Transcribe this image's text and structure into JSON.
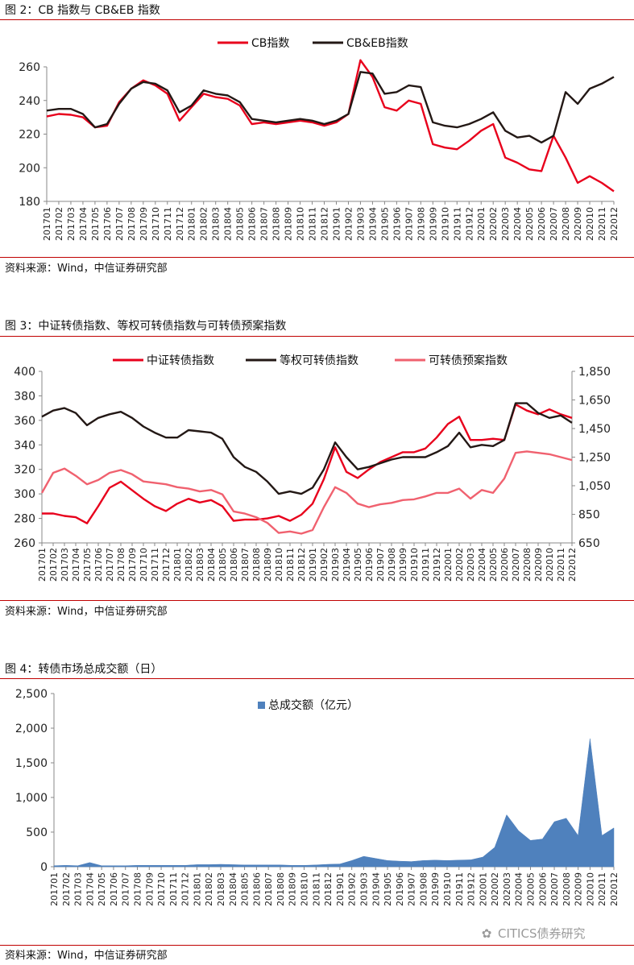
{
  "figures": [
    {
      "title": "图 2：CB 指数与 CB&EB 指数",
      "source": "资料来源：Wind，中信证券研究部"
    },
    {
      "title": "图 3：中证转债指数、等权可转债指数与可转债预案指数",
      "source": "资料来源：Wind，中信证券研究部"
    },
    {
      "title": "图 4：转债市场总成交额（日）",
      "source": "资料来源：Wind，中信证券研究部"
    }
  ],
  "watermark": "CITICS债券研究",
  "chart_data": [
    {
      "type": "line",
      "ylim": [
        180,
        260
      ],
      "y_ticks": [
        "180",
        "200",
        "220",
        "240",
        "260"
      ],
      "x_labels": [
        "201701",
        "201702",
        "201703",
        "201704",
        "201705",
        "201706",
        "201707",
        "201708",
        "201709",
        "201710",
        "201711",
        "201712",
        "201801",
        "201802",
        "201803",
        "201804",
        "201805",
        "201806",
        "201807",
        "201808",
        "201809",
        "201810",
        "201811",
        "201812",
        "201901",
        "201902",
        "201903",
        "201904",
        "201905",
        "201906",
        "201907",
        "201908",
        "201909",
        "201910",
        "201911",
        "201912",
        "202001",
        "202002",
        "202003",
        "202004",
        "202005",
        "202006",
        "202007",
        "202008",
        "202009",
        "202010",
        "202011",
        "202012"
      ],
      "grid": false,
      "legend_position": "top-center",
      "series": [
        {
          "name": "CB指数",
          "color": "#e8001c",
          "values": [
            230.5,
            232,
            231.5,
            230,
            224,
            225,
            239,
            247,
            252,
            249,
            244,
            228,
            236,
            244,
            242,
            241,
            237,
            226,
            227,
            226,
            227,
            228,
            227,
            225,
            227,
            232,
            264,
            254,
            236,
            234,
            240,
            238,
            214,
            212,
            211,
            216,
            222,
            226,
            206,
            203,
            199,
            198,
            219,
            206,
            191,
            195,
            191,
            186
          ]
        },
        {
          "name": "CB&EB指数",
          "color": "#231815",
          "values": [
            234,
            235,
            235,
            232,
            224,
            226,
            238,
            247,
            251,
            250,
            246,
            233,
            237,
            246,
            244,
            243,
            239,
            229,
            228,
            227,
            228,
            229,
            228,
            226,
            228,
            232,
            257,
            256,
            244,
            245,
            249,
            248,
            227,
            225,
            224,
            226,
            229,
            233,
            222,
            218,
            219,
            215,
            219,
            245,
            238,
            247,
            250,
            254
          ]
        }
      ]
    },
    {
      "type": "line",
      "ylim": [
        260,
        400
      ],
      "y_ticks": [
        "260",
        "280",
        "300",
        "320",
        "340",
        "360",
        "380",
        "400"
      ],
      "y2lim": [
        650,
        1850
      ],
      "y2_ticks": [
        "650",
        "850",
        "1,050",
        "1,250",
        "1,450",
        "1,650",
        "1,850"
      ],
      "x_labels": [
        "201701",
        "201702",
        "201703",
        "201704",
        "201705",
        "201706",
        "201707",
        "201708",
        "201709",
        "201710",
        "201711",
        "201712",
        "201801",
        "201802",
        "201803",
        "201804",
        "201805",
        "201806",
        "201807",
        "201808",
        "201809",
        "201810",
        "201811",
        "201812",
        "201901",
        "201902",
        "201903",
        "201904",
        "201905",
        "201906",
        "201907",
        "201908",
        "201909",
        "201910",
        "201911",
        "201912",
        "202001",
        "202002",
        "202003",
        "202004",
        "202005",
        "202006",
        "202007",
        "202008",
        "202009",
        "202010",
        "202011",
        "202012"
      ],
      "grid": false,
      "legend_position": "top-center",
      "series": [
        {
          "name": "中证转债指数",
          "axis": "left",
          "color": "#e8001c",
          "values": [
            284,
            284,
            282,
            281,
            276,
            290,
            305,
            310,
            303,
            296,
            290,
            286,
            292,
            296,
            293,
            295,
            290,
            278,
            279,
            279,
            280,
            282,
            278,
            283,
            292,
            312,
            338,
            318,
            313,
            320,
            326,
            330,
            334,
            334,
            337,
            346,
            357,
            363,
            344,
            344,
            345,
            344,
            373,
            368,
            365,
            369,
            365,
            362
          ]
        },
        {
          "name": "等权可转债指数",
          "axis": "left",
          "color": "#231815",
          "values": [
            363,
            368,
            370,
            366,
            356,
            362,
            365,
            367,
            362,
            355,
            350,
            346,
            346,
            352,
            351,
            350,
            345,
            330,
            322,
            318,
            310,
            300,
            302,
            300,
            305,
            320,
            342,
            330,
            320,
            322,
            325,
            328,
            330,
            330,
            330,
            334,
            339,
            350,
            338,
            340,
            339,
            344,
            374,
            374,
            366,
            362,
            364,
            358
          ]
        },
        {
          "name": "可转债预案指数",
          "axis": "right",
          "color": "#f0616f",
          "values": [
            1000,
            1140,
            1170,
            1120,
            1060,
            1090,
            1140,
            1160,
            1130,
            1080,
            1070,
            1060,
            1040,
            1030,
            1010,
            1020,
            990,
            870,
            855,
            830,
            790,
            720,
            730,
            715,
            740,
            900,
            1040,
            1000,
            925,
            900,
            920,
            930,
            950,
            955,
            975,
            1000,
            1000,
            1030,
            960,
            1020,
            1000,
            1100,
            1280,
            1290,
            1280,
            1270,
            1250,
            1230
          ]
        }
      ]
    },
    {
      "type": "area",
      "ylim": [
        0,
        2500
      ],
      "y_ticks": [
        "0",
        "500",
        "1,000",
        "1,500",
        "2,000",
        "2,500"
      ],
      "x_labels": [
        "201701",
        "201702",
        "201703",
        "201704",
        "201705",
        "201706",
        "201707",
        "201708",
        "201709",
        "201710",
        "201711",
        "201712",
        "201801",
        "201802",
        "201803",
        "201804",
        "201805",
        "201806",
        "201807",
        "201808",
        "201809",
        "201810",
        "201811",
        "201812",
        "201901",
        "201902",
        "201903",
        "201904",
        "201905",
        "201906",
        "201907",
        "201908",
        "201909",
        "201910",
        "201911",
        "201912",
        "202001",
        "202002",
        "202003",
        "202004",
        "202005",
        "202006",
        "202007",
        "202008",
        "202009",
        "202010",
        "202011",
        "202012"
      ],
      "grid": false,
      "legend_position": "top-center",
      "series": [
        {
          "name": "总成交额（亿元）",
          "color": "#4f81bd",
          "values": [
            15,
            20,
            15,
            60,
            15,
            15,
            15,
            20,
            20,
            20,
            20,
            20,
            30,
            30,
            35,
            30,
            25,
            25,
            25,
            25,
            20,
            20,
            25,
            35,
            40,
            90,
            150,
            120,
            90,
            80,
            75,
            90,
            95,
            90,
            95,
            100,
            140,
            280,
            750,
            520,
            380,
            400,
            650,
            700,
            450,
            1850,
            450,
            560
          ]
        }
      ]
    }
  ]
}
